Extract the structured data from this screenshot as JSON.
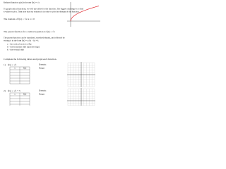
{
  "intro": "Reduced function p(x) is the one   f(x) = √x",
  "paragraph": [
    "To graph radical functions, we will use tables for the function. The biggest challenge is to find",
    "x-values to plot. Then note that our solution is in order to plot the domain of the function."
  ],
  "domain_note": "The domain of f(x) = √x is x ≥ 0",
  "parent": "The parent function for a radical equation is f(x) = √x",
  "translation": [
    "The parent function can be translated, stretched/shrunk, and reflected by",
    "writing it in the form f(x) = a√(x − h) + k"
  ],
  "list": [
    "a – the vertical stretch or flip",
    "h – the horizontal shift (opposite sign)",
    "k – the vertical shift"
  ],
  "instructions": "Complete the following tables and graph each function.",
  "problems": [
    {
      "number": "1)",
      "function": "f(x) = √x",
      "domain": "Domain:",
      "range": "Range:",
      "table_header": [
        "x",
        "f(x)"
      ]
    },
    {
      "number": "2)",
      "function": "f(x) = √x + 3",
      "domain": "Domain:",
      "range": "Range:",
      "table_header": [
        "x",
        "f(x)"
      ]
    }
  ]
}
